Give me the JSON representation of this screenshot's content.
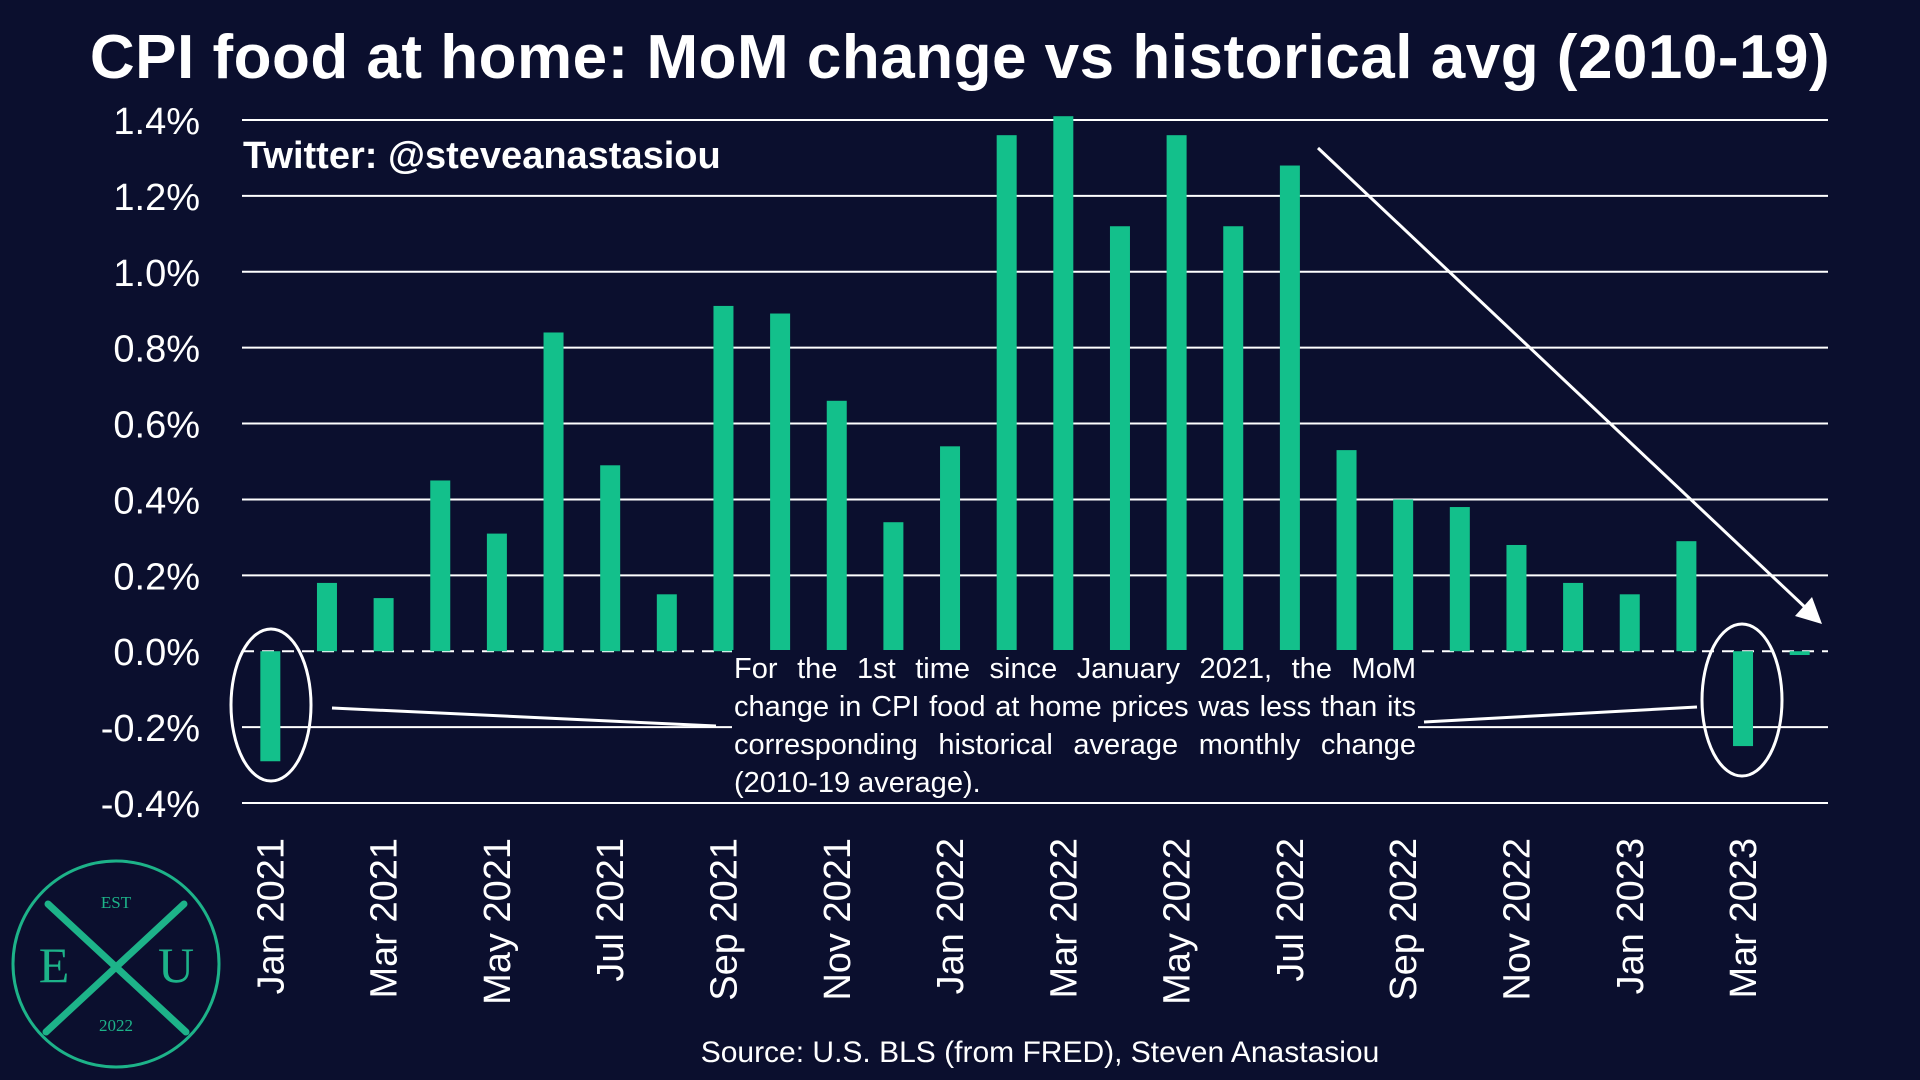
{
  "title": "CPI food at home: MoM change vs historical avg (2010-19)",
  "watermark": "Twitter: @steveanastasiou",
  "source": "Source: U.S. BLS (from FRED), Steven Anastasiou",
  "annotation": "For the 1st time since January 2021, the MoM change in CPI food at home prices was less than its corresponding historical average monthly change (2010-19 average).",
  "logo": {
    "top": "EST",
    "left": "E",
    "right": "U",
    "bottom": "2022"
  },
  "colors": {
    "background": "#0b0f2e",
    "bar": "#13c08b",
    "grid": "#ffffff",
    "text": "#ffffff",
    "logo": "#1db389"
  },
  "chart_data": {
    "type": "bar",
    "title": "CPI food at home: MoM change vs historical avg (2010-19)",
    "xlabel": "",
    "ylabel": "",
    "ylim": [
      -0.4,
      1.4
    ],
    "y_ticks": [
      "1.4%",
      "1.2%",
      "1.0%",
      "0.8%",
      "0.6%",
      "0.4%",
      "0.2%",
      "0.0%",
      "-0.2%",
      "-0.4%"
    ],
    "y_tick_values": [
      1.4,
      1.2,
      1.0,
      0.8,
      0.6,
      0.4,
      0.2,
      0.0,
      -0.2,
      -0.4
    ],
    "grid": true,
    "zero_line": "dashed",
    "categories": [
      "Jan 2021",
      "Feb 2021",
      "Mar 2021",
      "Apr 2021",
      "May 2021",
      "Jun 2021",
      "Jul 2021",
      "Aug 2021",
      "Sep 2021",
      "Oct 2021",
      "Nov 2021",
      "Dec 2021",
      "Jan 2022",
      "Feb 2022",
      "Mar 2022",
      "Apr 2022",
      "May 2022",
      "Jun 2022",
      "Jul 2022",
      "Aug 2022",
      "Sep 2022",
      "Oct 2022",
      "Nov 2022",
      "Dec 2022",
      "Jan 2023",
      "Feb 2023",
      "Mar 2023",
      "Apr 2023"
    ],
    "x_tick_labels": [
      "Jan 2021",
      "",
      "Mar 2021",
      "",
      "May 2021",
      "",
      "Jul 2021",
      "",
      "Sep 2021",
      "",
      "Nov 2021",
      "",
      "Jan 2022",
      "",
      "Mar 2022",
      "",
      "May 2022",
      "",
      "Jul 2022",
      "",
      "Sep 2022",
      "",
      "Nov 2022",
      "",
      "Jan 2023",
      "",
      "Mar 2023",
      ""
    ],
    "values": [
      -0.29,
      0.18,
      0.14,
      0.45,
      0.31,
      0.84,
      0.49,
      0.15,
      0.91,
      0.89,
      0.66,
      0.34,
      0.54,
      1.36,
      1.41,
      1.12,
      1.36,
      1.12,
      1.28,
      0.53,
      0.4,
      0.38,
      0.28,
      0.18,
      0.15,
      0.29,
      -0.25,
      -0.01
    ],
    "highlighted": [
      "Jan 2021",
      "Mar 2023"
    ]
  }
}
